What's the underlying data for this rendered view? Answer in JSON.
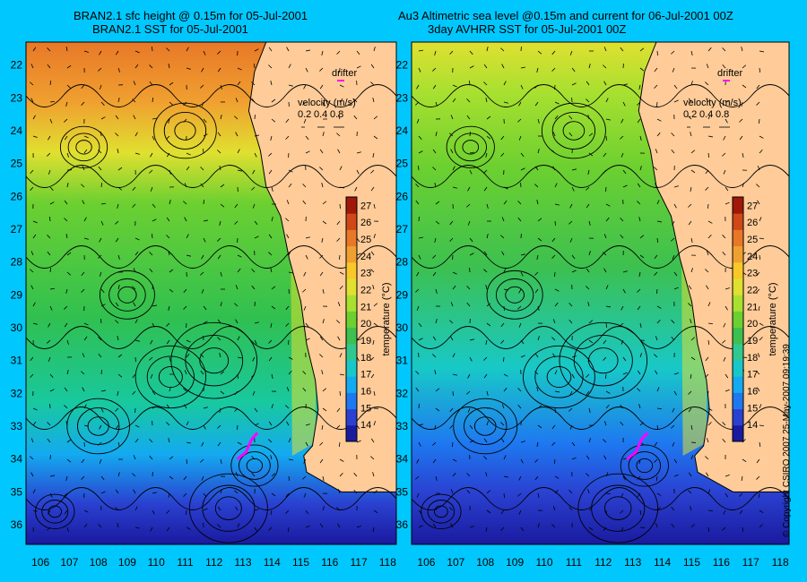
{
  "titles": {
    "left_line1": "BRAN2.1 sfc height @ 0.15m for 05-Jul-2001",
    "left_line2": "BRAN2.1 SST for 05-Jul-2001",
    "right_line1": "Au3 Altimetric sea level  @0.15m and current for 06-Jul-2001 00Z",
    "right_line2": "3day AVHRR SST for 05-Jul-2001 00Z"
  },
  "copyright": "© Copyright CSIRO 2007    25-May-2007 09:19:39",
  "colors": {
    "background": "#00c8ff",
    "land": "#ffcc99",
    "drifter": "#ff00ff"
  },
  "chart_data": [
    {
      "type": "heatmap",
      "panel": "left",
      "x_ticks": [
        "106",
        "107",
        "108",
        "109",
        "110",
        "111",
        "112",
        "113",
        "114",
        "115",
        "116",
        "117",
        "118"
      ],
      "y_ticks": [
        "22",
        "23",
        "24",
        "25",
        "26",
        "27",
        "28",
        "29",
        "30",
        "31",
        "32",
        "33",
        "34",
        "35",
        "36"
      ],
      "xlim": [
        105.5,
        118.3
      ],
      "ylim": [
        21.3,
        36.6
      ],
      "legend": {
        "drifter_label": "drifter",
        "velocity_title": "velocity (m/s)",
        "velocity_values": [
          "0.2",
          "0.4",
          "0.8"
        ]
      },
      "colorbar": {
        "label": "temperature (°C)",
        "ticks": [
          "27",
          "26",
          "25",
          "24",
          "23",
          "22",
          "21",
          "20",
          "19",
          "18",
          "17",
          "16",
          "15",
          "14"
        ],
        "range": [
          13,
          27.5
        ],
        "colors": [
          "#1a1a9e",
          "#2a40d0",
          "#1e78f0",
          "#14aaf0",
          "#18c8c8",
          "#30c890",
          "#3cc050",
          "#6cd030",
          "#a8e030",
          "#e0e030",
          "#f8c828",
          "#f0a030",
          "#e87828",
          "#d04818",
          "#a01808"
        ]
      }
    },
    {
      "type": "heatmap",
      "panel": "right",
      "x_ticks": [
        "106",
        "107",
        "108",
        "109",
        "110",
        "111",
        "112",
        "113",
        "114",
        "115",
        "116",
        "117",
        "118"
      ],
      "y_ticks": [
        "22",
        "23",
        "24",
        "25",
        "26",
        "27",
        "28",
        "29",
        "30",
        "31",
        "32",
        "33",
        "34",
        "35",
        "36"
      ],
      "xlim": [
        105.5,
        118.3
      ],
      "ylim": [
        21.3,
        36.6
      ],
      "legend": {
        "drifter_label": "drifter",
        "velocity_title": "velocity (m/s)",
        "velocity_values": [
          "0.2",
          "0.4",
          "0.8"
        ]
      },
      "colorbar": {
        "label": "temperature (°C)",
        "ticks": [
          "27",
          "26",
          "25",
          "24",
          "23",
          "22",
          "21",
          "20",
          "19",
          "18",
          "17",
          "16",
          "15",
          "14"
        ],
        "range": [
          13,
          27.5
        ],
        "colors": [
          "#1a1a9e",
          "#2a40d0",
          "#1e78f0",
          "#14aaf0",
          "#18c8c8",
          "#30c890",
          "#3cc050",
          "#6cd030",
          "#a8e030",
          "#e0e030",
          "#f8c828",
          "#f0a030",
          "#e87828",
          "#d04818",
          "#a01808"
        ]
      }
    }
  ]
}
